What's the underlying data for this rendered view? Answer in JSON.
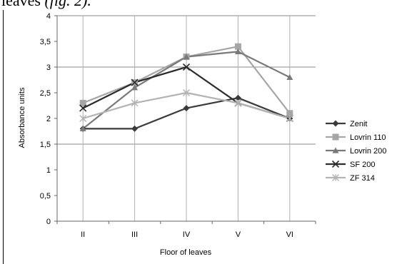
{
  "page": {
    "caption_text": "leaves",
    "caption_ref": "(fig. 2)."
  },
  "chart_data": {
    "type": "line",
    "title": "",
    "xlabel": "Floor of leaves",
    "ylabel": "Absorbance units",
    "categories": [
      "II",
      "III",
      "IV",
      "V",
      "VI"
    ],
    "ylim": [
      0,
      4
    ],
    "yticks": [
      0,
      0.5,
      1,
      1.5,
      2,
      2.5,
      3,
      3.5,
      4
    ],
    "ytick_labels": [
      "0",
      "0,5",
      "1",
      "1,5",
      "2",
      "2,5",
      "3",
      "3,5",
      "4"
    ],
    "grid": "horizontal at 1.5, 3 and 4; vertical drop lines at each category",
    "legend_position": "right",
    "series": [
      {
        "name": "Zenit",
        "values": [
          1.8,
          1.8,
          2.2,
          2.4,
          2.0
        ],
        "marker": "diamond",
        "color": "#3a3a3a"
      },
      {
        "name": "Lovrin 110",
        "values": [
          2.3,
          2.7,
          3.2,
          3.4,
          2.1
        ],
        "marker": "square",
        "color": "#a6a6a6"
      },
      {
        "name": "Lovrin 200",
        "values": [
          1.8,
          2.6,
          3.2,
          3.3,
          2.8
        ],
        "marker": "triangle",
        "color": "#7a7a7a"
      },
      {
        "name": "SF 200",
        "values": [
          2.2,
          2.7,
          3.0,
          2.3,
          2.0
        ],
        "marker": "x",
        "color": "#2b2b2b"
      },
      {
        "name": "ZF 314",
        "values": [
          2.0,
          2.3,
          2.5,
          2.3,
          2.0
        ],
        "marker": "star",
        "color": "#b3b3b3"
      }
    ]
  }
}
